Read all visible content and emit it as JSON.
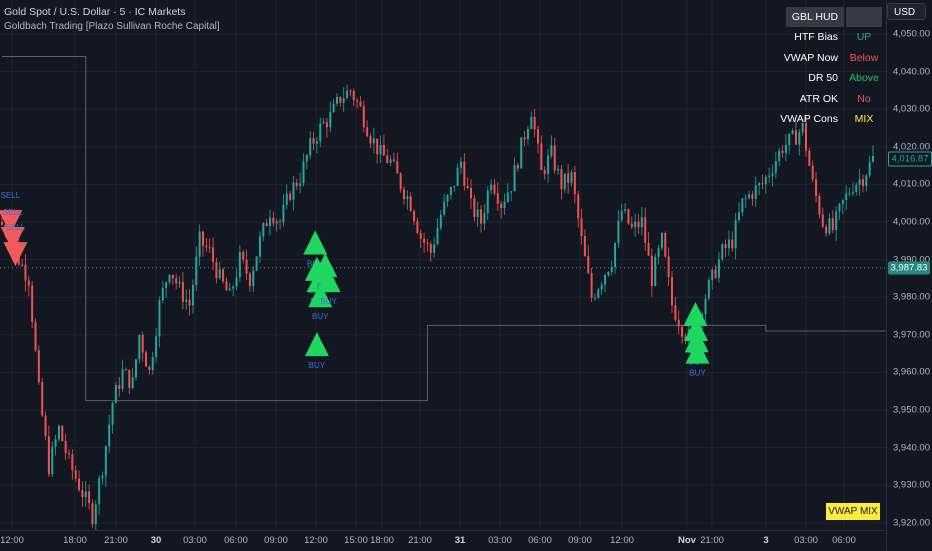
{
  "header": {
    "title": "Gold Spot / U.S. Dollar · 5 · IC Markets",
    "indicator": "Goldbach Trading [Plazo Sullivan Roche Capital]"
  },
  "currency_button": "USD",
  "colors": {
    "background": "#131722",
    "bull": "#26a69a",
    "bear": "#ef5350",
    "buy_marker": "#1ed760",
    "sell_marker": "#f05a5a",
    "signal_text": "#3f6fd8",
    "level_line": "#5d606b",
    "badge": "#ffeb3b",
    "hud_up": "#26a69a",
    "hud_below": "#ef5350",
    "hud_above": "#22c55e",
    "hud_no": "#ef5350",
    "hud_mix": "#ffeb3b"
  },
  "hud": {
    "title": "GBL HUD",
    "rows": [
      {
        "label": "HTF Bias",
        "value": "UP",
        "color": "#26a69a"
      },
      {
        "label": "VWAP Now",
        "value": "Below",
        "color": "#ef5350"
      },
      {
        "label": "DR 50",
        "value": "Above",
        "color": "#22c55e"
      },
      {
        "label": "ATR OK",
        "value": "No",
        "color": "#ef5350"
      },
      {
        "label": "VWAP Cons",
        "value": "MIX",
        "color": "#ffeb3b"
      }
    ]
  },
  "badge": "VWAP MIX",
  "price_axis": {
    "ticks": [
      "4,050.00",
      "4,040.00",
      "4,030.00",
      "4,020.00",
      "4,010.00",
      "4,000.00",
      "3,990.00",
      "3,980.00",
      "3,970.00",
      "3,960.00",
      "3,950.00",
      "3,940.00",
      "3,930.00",
      "3,920.00"
    ],
    "last_price": "4,016.87",
    "ref_price": "3,987.83"
  },
  "time_axis": {
    "ticks": [
      "12:00",
      "18:00",
      "21:00",
      "30",
      "03:00",
      "06:00",
      "09:00",
      "12:00",
      "15:00",
      "18:00",
      "21:00",
      "31",
      "03:00",
      "06:00",
      "09:00",
      "12:00",
      "Nov",
      "21:00",
      "3",
      "03:00",
      "06:00"
    ]
  },
  "chart_data": {
    "type": "candlestick",
    "symbol": "XAUUSD",
    "timeframe": "5",
    "ylim": [
      3918,
      4057
    ],
    "last_price": 4016.87,
    "ref_price": 3987.83,
    "price_path": [
      [
        0,
        4000
      ],
      [
        3,
        3998
      ],
      [
        6,
        3990
      ],
      [
        9,
        3985
      ],
      [
        12,
        3955
      ],
      [
        15,
        3935
      ],
      [
        18,
        3945
      ],
      [
        21,
        3936
      ],
      [
        25,
        3928
      ],
      [
        28,
        3922
      ],
      [
        31,
        3935
      ],
      [
        34,
        3952
      ],
      [
        37,
        3960
      ],
      [
        40,
        3957
      ],
      [
        42,
        3970
      ],
      [
        45,
        3960
      ],
      [
        48,
        3978
      ],
      [
        51,
        3988
      ],
      [
        54,
        3982
      ],
      [
        57,
        3978
      ],
      [
        60,
        3995
      ],
      [
        63,
        3992
      ],
      [
        66,
        3985
      ],
      [
        69,
        3980
      ],
      [
        72,
        3990
      ],
      [
        75,
        3985
      ],
      [
        78,
        3995
      ],
      [
        81,
        4003
      ],
      [
        84,
        4000
      ],
      [
        87,
        4008
      ],
      [
        90,
        4012
      ],
      [
        93,
        4020
      ],
      [
        96,
        4025
      ],
      [
        99,
        4028
      ],
      [
        102,
        4033
      ],
      [
        105,
        4035
      ],
      [
        108,
        4030
      ],
      [
        111,
        4023
      ],
      [
        114,
        4018
      ],
      [
        117,
        4016
      ],
      [
        120,
        4010
      ],
      [
        123,
        4005
      ],
      [
        126,
        3996
      ],
      [
        129,
        3992
      ],
      [
        132,
        4002
      ],
      [
        135,
        4008
      ],
      [
        138,
        4016
      ],
      [
        141,
        4004
      ],
      [
        144,
        4000
      ],
      [
        147,
        4012
      ],
      [
        150,
        4005
      ],
      [
        153,
        4010
      ],
      [
        156,
        4020
      ],
      [
        159,
        4030
      ],
      [
        162,
        4013
      ],
      [
        165,
        4018
      ],
      [
        168,
        4010
      ],
      [
        171,
        4012
      ],
      [
        174,
        3995
      ],
      [
        177,
        3980
      ],
      [
        180,
        3985
      ],
      [
        183,
        3990
      ],
      [
        186,
        4003
      ],
      [
        189,
        3998
      ],
      [
        192,
        4000
      ],
      [
        195,
        3985
      ],
      [
        198,
        3995
      ],
      [
        201,
        3978
      ],
      [
        204,
        3972
      ],
      [
        207,
        3968
      ],
      [
        210,
        3978
      ],
      [
        213,
        3985
      ],
      [
        216,
        3992
      ],
      [
        219,
        3995
      ],
      [
        222,
        4005
      ],
      [
        225,
        4008
      ],
      [
        228,
        4010
      ],
      [
        231,
        4015
      ],
      [
        234,
        4020
      ],
      [
        237,
        4022
      ],
      [
        240,
        4025
      ],
      [
        243,
        4010
      ],
      [
        246,
        4000
      ],
      [
        249,
        3998
      ],
      [
        252,
        4005
      ],
      [
        255,
        4010
      ],
      [
        258,
        4012
      ],
      [
        261,
        4016.87
      ]
    ],
    "signals": [
      {
        "type": "SELL",
        "x": 2.5,
        "price": 4000.5
      },
      {
        "type": "SELL",
        "x": 3.2,
        "price": 3996
      },
      {
        "type": "SELL",
        "x": 4.0,
        "price": 3992
      },
      {
        "type": "BUY",
        "x": 93.5,
        "price": 3994
      },
      {
        "type": "BUY",
        "x": 94.0,
        "price": 3987
      },
      {
        "type": "BUY",
        "x": 94.5,
        "price": 3984
      },
      {
        "type": "BUY",
        "x": 95.0,
        "price": 3980
      },
      {
        "type": "BUY",
        "x": 96.5,
        "price": 3988
      },
      {
        "type": "BUY",
        "x": 97.5,
        "price": 3984
      },
      {
        "type": "BUY",
        "x": 94.0,
        "price": 3967
      },
      {
        "type": "BUY",
        "x": 207.0,
        "price": 3975
      },
      {
        "type": "BUY",
        "x": 207.2,
        "price": 3971
      },
      {
        "type": "BUY",
        "x": 207.4,
        "price": 3968
      },
      {
        "type": "BUY",
        "x": 207.6,
        "price": 3965
      }
    ],
    "levels": [
      [
        [
          0,
          4044
        ],
        [
          25,
          4044
        ],
        [
          25,
          3952.5
        ],
        [
          127,
          3952.5
        ],
        [
          127,
          3972.5
        ],
        [
          228,
          3972.5
        ],
        [
          228,
          3971
        ],
        [
          295,
          3971
        ]
      ]
    ]
  }
}
